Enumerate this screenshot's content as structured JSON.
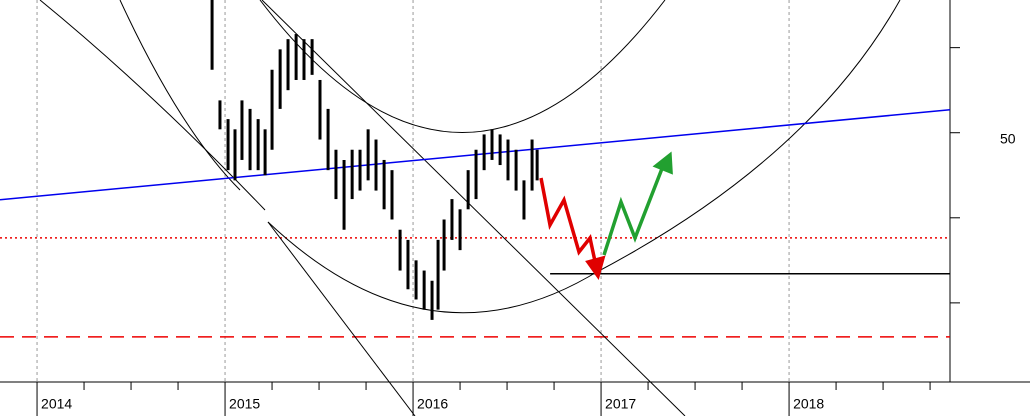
{
  "chart_data": {
    "type": "range-bar",
    "color": "#000000",
    "x": [
      2014.931,
      2014.973,
      2015.016,
      2015.053,
      2015.09,
      2015.133,
      2015.176,
      2015.213,
      2015.25,
      2015.293,
      2015.335,
      2015.378,
      2015.42,
      2015.463,
      2015.505,
      2015.548,
      2015.59,
      2015.633,
      2015.676,
      2015.718,
      2015.761,
      2015.803,
      2015.846,
      2015.888,
      2015.931,
      2015.973,
      2016.016,
      2016.059,
      2016.101,
      2016.133,
      2016.165,
      2016.207,
      2016.25,
      2016.293,
      2016.335,
      2016.378,
      2016.42,
      2016.463,
      2016.505,
      2016.548,
      2016.59,
      2016.633,
      2016.66
    ],
    "high": [
      57.8,
      51.9,
      50.8,
      50.2,
      51.9,
      51.4,
      50.8,
      50.2,
      53.7,
      54.9,
      55.5,
      55.8,
      55.5,
      55.5,
      53.1,
      51.4,
      49.0,
      48.4,
      49.0,
      49.0,
      50.2,
      49.6,
      48.4,
      47.8,
      44.3,
      43.7,
      42.5,
      41.9,
      41.3,
      43.7,
      44.9,
      46.1,
      45.5,
      47.8,
      49.0,
      49.9,
      50.2,
      49.9,
      49.6,
      49.0,
      47.2,
      49.6,
      49.0
    ],
    "low": [
      53.7,
      50.2,
      47.8,
      47.2,
      48.4,
      47.8,
      47.8,
      47.5,
      49.0,
      51.4,
      52.5,
      53.1,
      53.1,
      53.4,
      49.6,
      47.8,
      46.1,
      44.3,
      46.1,
      46.6,
      47.2,
      46.6,
      45.5,
      44.9,
      41.9,
      40.8,
      40.2,
      39.6,
      39.0,
      39.6,
      41.9,
      43.7,
      43.1,
      45.5,
      46.1,
      47.8,
      48.4,
      48.1,
      47.2,
      46.6,
      44.9,
      46.6,
      47.2
    ],
    "xlim": [
      2013.803,
      2018.856
    ],
    "ylim": [
      35.35,
      57.8
    ],
    "xticks": [
      2014,
      2015,
      2016,
      2017,
      2018
    ],
    "yticks": [
      50
    ],
    "minor_yticks": [
      55,
      45,
      40
    ],
    "grid": true,
    "trendline": {
      "x": [
        2013.803,
        2018.856
      ],
      "y": [
        46.06,
        51.35
      ],
      "color": "#0000ee"
    },
    "hlines": [
      {
        "y": 43.82,
        "color": "#ee0000",
        "style": "dotted",
        "x_start": 2013.803
      },
      {
        "y": 38.0,
        "color": "#ee0000",
        "style": "dashed",
        "x_start": 2013.803
      },
      {
        "y": 41.71,
        "color": "#000000",
        "style": "solid",
        "x_start": 2016.729
      }
    ]
  }
}
